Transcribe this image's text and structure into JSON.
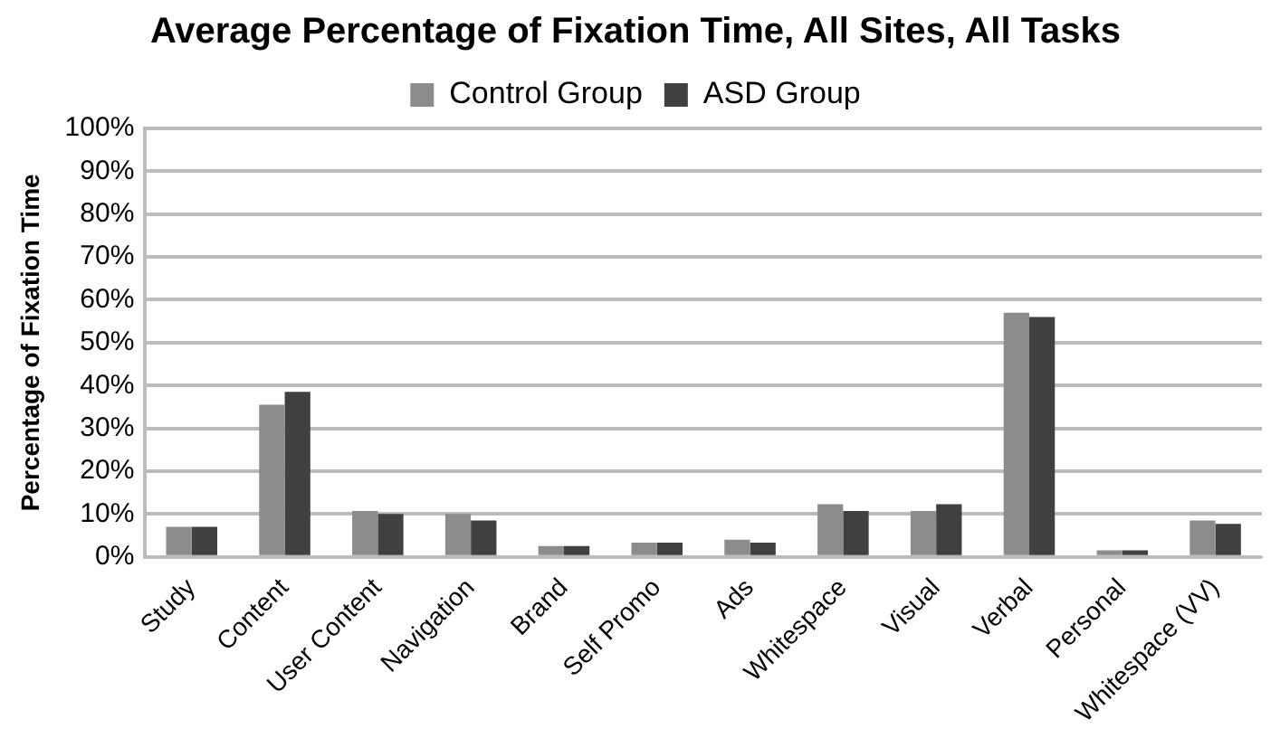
{
  "chart_data": {
    "type": "bar",
    "title": "Average Percentage of Fixation Time, All Sites, All Tasks",
    "ylabel": "Percentage of Fixation Time",
    "categories": [
      "Study",
      "Content",
      "User Content",
      "Navigation",
      "Brand",
      "Self Promo",
      "Ads",
      "Whitespace",
      "Visual",
      "Verbal",
      "Personal",
      "Whitespace (VV)"
    ],
    "series": [
      {
        "name": "Control Group",
        "color": "#8c8c8c",
        "values": [
          7,
          35.5,
          10.7,
          10,
          2.5,
          3.3,
          4,
          12.3,
          10.7,
          57,
          1.5,
          8.5
        ]
      },
      {
        "name": "ASD Group",
        "color": "#404040",
        "values": [
          7,
          38.5,
          10,
          8.5,
          2.5,
          3.3,
          3.3,
          10.7,
          12.3,
          56,
          1.5,
          7.7
        ]
      }
    ],
    "ylim": [
      0,
      100
    ],
    "yticks": [
      {
        "value": 0,
        "label": "0%"
      },
      {
        "value": 10,
        "label": "10%"
      },
      {
        "value": 20,
        "label": "20%"
      },
      {
        "value": 30,
        "label": "30%"
      },
      {
        "value": 40,
        "label": "40%"
      },
      {
        "value": 50,
        "label": "50%"
      },
      {
        "value": 60,
        "label": "60%"
      },
      {
        "value": 70,
        "label": "70%"
      },
      {
        "value": 80,
        "label": "80%"
      },
      {
        "value": 90,
        "label": "90%"
      },
      {
        "value": 100,
        "label": "100%"
      }
    ],
    "grid": "y",
    "legend": "top"
  }
}
